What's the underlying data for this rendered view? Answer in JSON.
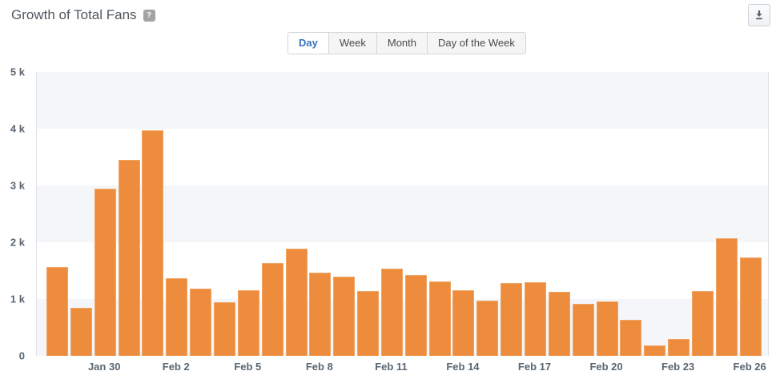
{
  "header": {
    "title": "Growth of Total Fans",
    "help_badge": "?"
  },
  "toolbar": {
    "tabs": [
      {
        "label": "Day",
        "active": true
      },
      {
        "label": "Week",
        "active": false
      },
      {
        "label": "Month",
        "active": false
      },
      {
        "label": "Day of the Week",
        "active": false
      }
    ]
  },
  "chart_data": {
    "type": "bar",
    "title": "Growth of Total Fans",
    "x": [
      "Jan 28",
      "Jan 29",
      "Jan 30",
      "Jan 31",
      "Feb 1",
      "Feb 2",
      "Feb 3",
      "Feb 4",
      "Feb 5",
      "Feb 6",
      "Feb 7",
      "Feb 8",
      "Feb 9",
      "Feb 10",
      "Feb 11",
      "Feb 12",
      "Feb 13",
      "Feb 14",
      "Feb 15",
      "Feb 16",
      "Feb 17",
      "Feb 18",
      "Feb 19",
      "Feb 20",
      "Feb 21",
      "Feb 22",
      "Feb 23",
      "Feb 24",
      "Feb 25",
      "Feb 26"
    ],
    "values": [
      1570,
      840,
      2950,
      3450,
      3970,
      1370,
      1190,
      940,
      1150,
      1640,
      1890,
      1460,
      1400,
      1140,
      1530,
      1420,
      1310,
      1150,
      970,
      1280,
      1300,
      1130,
      920,
      960,
      630,
      180,
      300,
      1140,
      2070,
      1730
    ],
    "x_ticks": [
      {
        "index": 2,
        "label": "Jan 30"
      },
      {
        "index": 5,
        "label": "Feb 2"
      },
      {
        "index": 8,
        "label": "Feb 5"
      },
      {
        "index": 11,
        "label": "Feb 8"
      },
      {
        "index": 14,
        "label": "Feb 11"
      },
      {
        "index": 17,
        "label": "Feb 14"
      },
      {
        "index": 20,
        "label": "Feb 17"
      },
      {
        "index": 23,
        "label": "Feb 20"
      },
      {
        "index": 26,
        "label": "Feb 23"
      },
      {
        "index": 29,
        "label": "Feb 26"
      }
    ],
    "y_ticks": [
      {
        "value": 0,
        "label": "0"
      },
      {
        "value": 1000,
        "label": "1 k"
      },
      {
        "value": 2000,
        "label": "2 k"
      },
      {
        "value": 3000,
        "label": "3 k"
      },
      {
        "value": 4000,
        "label": "4 k"
      },
      {
        "value": 5000,
        "label": "5 k"
      }
    ],
    "ylim": [
      0,
      5000
    ],
    "bar_color": "#ee8c3e",
    "band_color": "#f5f6fa",
    "grid": "alternating horizontal bands",
    "legend_position": "none"
  }
}
